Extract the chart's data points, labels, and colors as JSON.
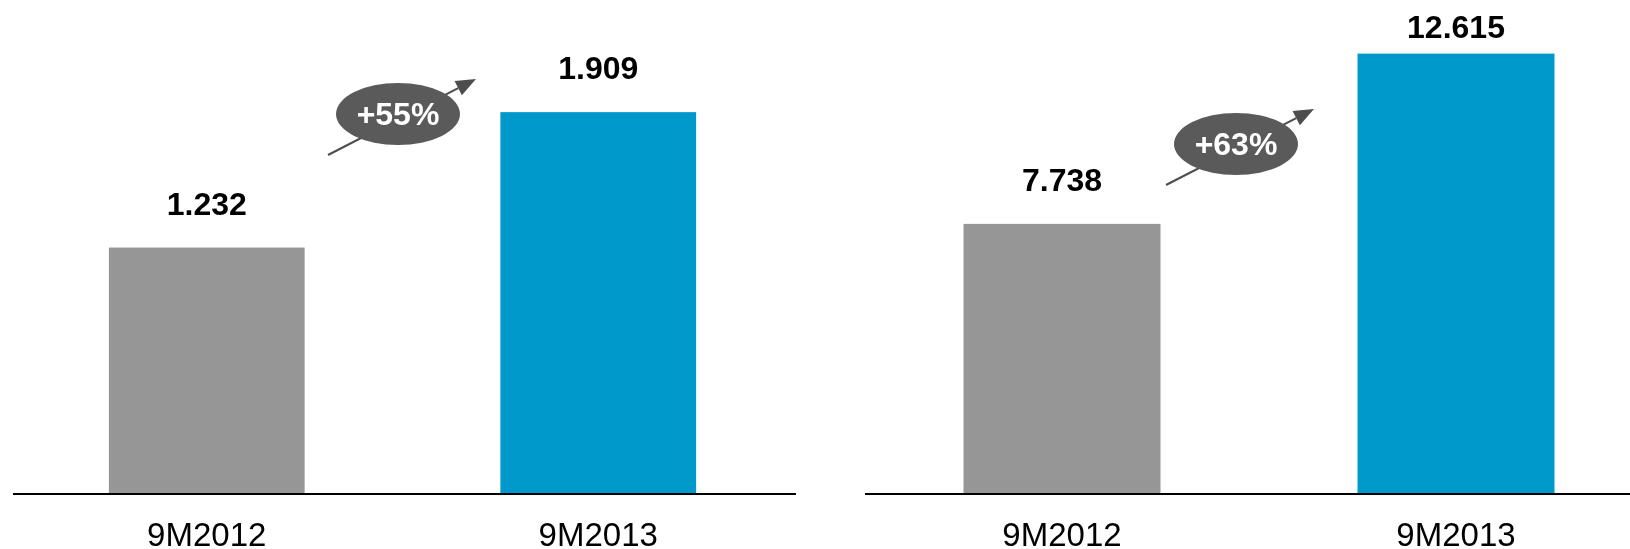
{
  "chart_data": [
    {
      "type": "bar",
      "categories": [
        "9M2012",
        "9M2013"
      ],
      "values": [
        1.232,
        1.909
      ],
      "colors": [
        "#969696",
        "#0099cc"
      ],
      "data_labels": true,
      "annotations": [
        "+55%"
      ]
    },
    {
      "type": "bar",
      "categories": [
        "9M2012",
        "9M2013"
      ],
      "values": [
        7.738,
        12.615
      ],
      "colors": [
        "#969696",
        "#0099cc"
      ],
      "data_labels": true,
      "annotations": [
        "+63%"
      ]
    }
  ]
}
